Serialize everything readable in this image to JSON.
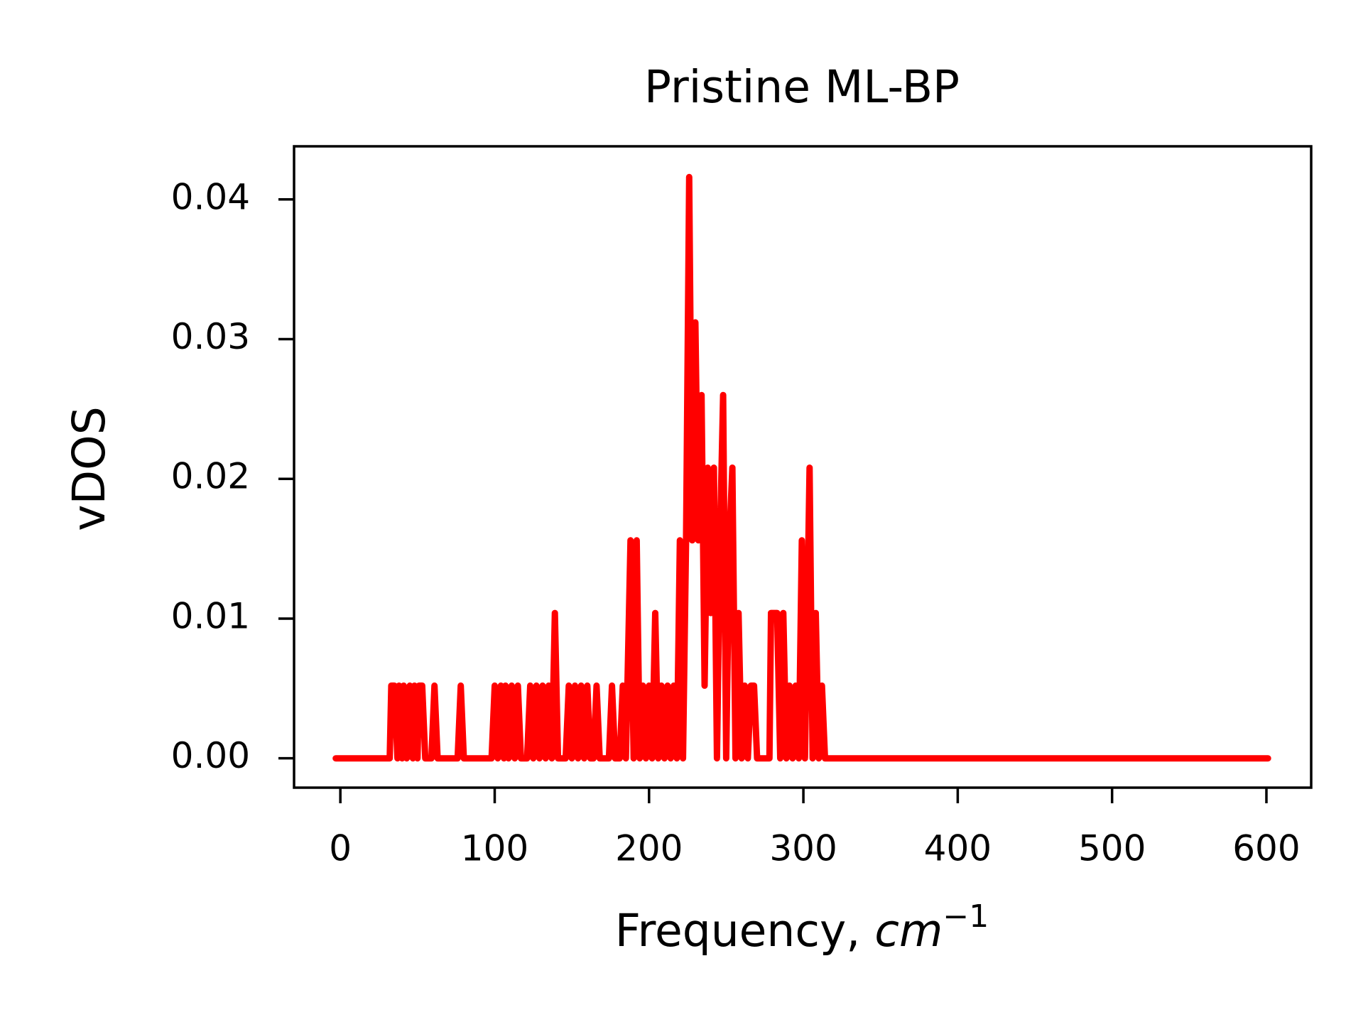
{
  "chart_data": {
    "type": "line",
    "title": "Pristine ML-BP",
    "x_label": "Frequency, ",
    "x_label_unit": "cm",
    "x_label_unit_exponent": "−1",
    "y_label": "vDOS",
    "x": [
      -3,
      32,
      33,
      35,
      37,
      38,
      40,
      41,
      43,
      45,
      47,
      48,
      50,
      51,
      53,
      55,
      59,
      61,
      63,
      68,
      70,
      76,
      78,
      80,
      93,
      98,
      100,
      102,
      104,
      106,
      107,
      109,
      111,
      113,
      115,
      117,
      121,
      123,
      125,
      127,
      129,
      131,
      133,
      135,
      137,
      139,
      141,
      146,
      148,
      150,
      152,
      154,
      156,
      158,
      160,
      162,
      164,
      166,
      168,
      174,
      176,
      178,
      181,
      183,
      185,
      188,
      190,
      192,
      194,
      196,
      198,
      200,
      202,
      204,
      206,
      208,
      210,
      212,
      214,
      216,
      218,
      220,
      222,
      224,
      226,
      228,
      230,
      232,
      234,
      236,
      238,
      240,
      242,
      244,
      246,
      248,
      250,
      252,
      254,
      256,
      258,
      260,
      262,
      264,
      266,
      268,
      270,
      278,
      279,
      281,
      283,
      285,
      287,
      289,
      291,
      293,
      295,
      297,
      299,
      301,
      304,
      306,
      308,
      310,
      312,
      314,
      601
    ],
    "series": [
      {
        "name": "vDOS",
        "color": "#ff0000",
        "values": [
          0,
          0,
          0.0052,
          0.0052,
          0,
          0.0052,
          0,
          0.0052,
          0,
          0.0052,
          0,
          0.0052,
          0,
          0.0052,
          0.0052,
          0,
          0,
          0.0052,
          0,
          0,
          0,
          0,
          0.0052,
          0,
          0,
          0,
          0.0052,
          0,
          0.0052,
          0,
          0.0052,
          0,
          0.0052,
          0,
          0.0052,
          0,
          0,
          0.0052,
          0,
          0.0052,
          0,
          0.0052,
          0,
          0.0052,
          0,
          0.0104,
          0,
          0,
          0.0052,
          0,
          0.0052,
          0,
          0.0052,
          0,
          0.0052,
          0,
          0,
          0.0052,
          0,
          0,
          0.0052,
          0,
          0,
          0.0052,
          0,
          0.0156,
          0,
          0.0156,
          0,
          0.0052,
          0,
          0.0052,
          0,
          0.0104,
          0,
          0.0052,
          0,
          0.0052,
          0,
          0.0052,
          0,
          0.0156,
          0,
          0.0156,
          0.0416,
          0.0156,
          0.0312,
          0.0156,
          0.026,
          0.0052,
          0.0208,
          0.0104,
          0.0208,
          0,
          0.0156,
          0.026,
          0,
          0.0156,
          0.0208,
          0,
          0.0104,
          0,
          0.0052,
          0,
          0.0052,
          0.0052,
          0,
          0,
          0.0104,
          0.0104,
          0.0104,
          0,
          0.0104,
          0,
          0.0052,
          0,
          0.0052,
          0,
          0.0156,
          0,
          0.0208,
          0,
          0.0104,
          0,
          0.0052,
          0,
          0
        ]
      }
    ],
    "xlim": [
      -30,
      629
    ],
    "ylim": [
      -0.0021,
      0.0438
    ],
    "xticks": [
      0,
      100,
      200,
      300,
      400,
      500,
      600
    ],
    "yticks": [
      {
        "value": 0,
        "label": "0.00"
      },
      {
        "value": 0.01,
        "label": "0.01"
      },
      {
        "value": 0.02,
        "label": "0.02"
      },
      {
        "value": 0.03,
        "label": "0.03"
      },
      {
        "value": 0.04,
        "label": "0.04"
      }
    ]
  }
}
